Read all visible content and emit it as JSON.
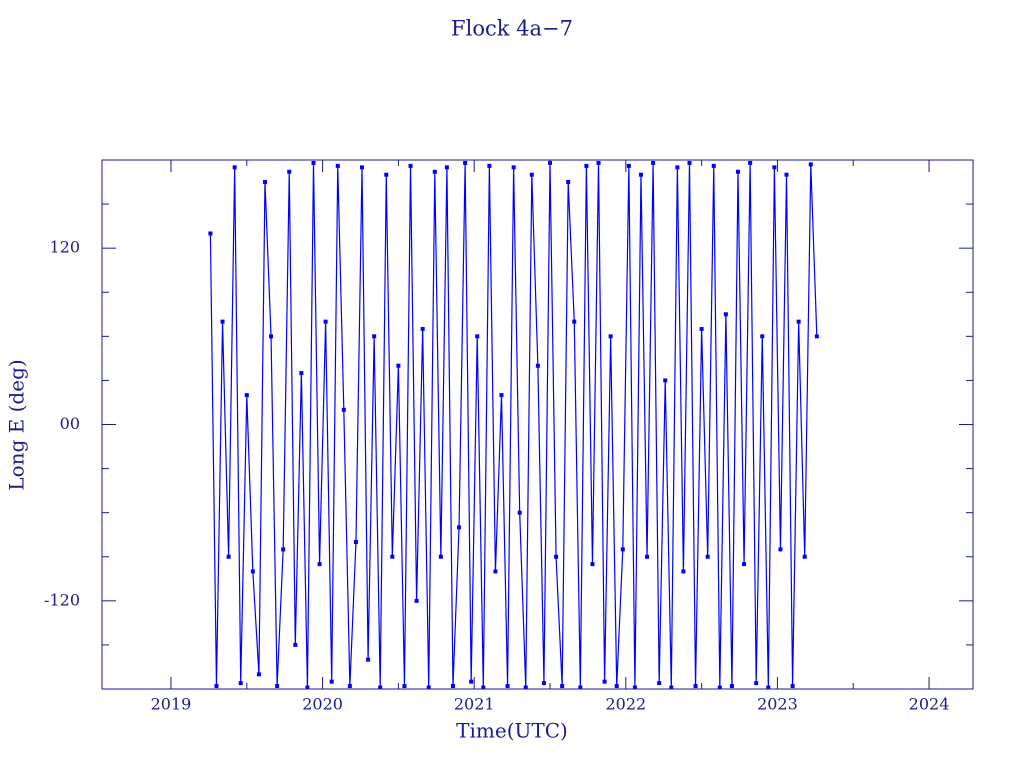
{
  "chart_data": {
    "type": "line",
    "title": "Flock 4a−7",
    "x_label": "Time(UTC)",
    "y_label": "Long E (deg)",
    "xlim": [
      2018.545,
      2024.29
    ],
    "xticks": [
      2019,
      2020,
      2021,
      2022,
      2023,
      2024
    ],
    "xminorticks": [
      2018.5,
      2019.5,
      2020.5,
      2021.5,
      2022.5,
      2023.5
    ],
    "ylim": [
      -180,
      180
    ],
    "yticks": [
      -120,
      {
        "value": 0,
        "label": "00"
      },
      120
    ],
    "yminorticks": [
      -150,
      -90,
      -60,
      -30,
      30,
      60,
      90,
      150
    ],
    "series": [
      {
        "color": "#0000ff",
        "x": [
          2019.26,
          2019.3,
          2019.34,
          2019.38,
          2019.42,
          2019.46,
          2019.5,
          2019.54,
          2019.58,
          2019.62,
          2019.66,
          2019.7,
          2019.74,
          2019.78,
          2019.82,
          2019.86,
          2019.9,
          2019.94,
          2019.98,
          2020.02,
          2020.06,
          2020.1,
          2020.14,
          2020.18,
          2020.22,
          2020.26,
          2020.3,
          2020.34,
          2020.38,
          2020.42,
          2020.46,
          2020.5,
          2020.54,
          2020.58,
          2020.62,
          2020.66,
          2020.7,
          2020.74,
          2020.78,
          2020.82,
          2020.86,
          2020.9,
          2020.94,
          2020.98,
          2021.02,
          2021.06,
          2021.1,
          2021.14,
          2021.18,
          2021.22,
          2021.26,
          2021.3,
          2021.34,
          2021.38,
          2021.42,
          2021.46,
          2021.5,
          2021.54,
          2021.58,
          2021.62,
          2021.66,
          2021.7,
          2021.74,
          2021.78,
          2021.82,
          2021.86,
          2021.9,
          2021.94,
          2021.98,
          2022.02,
          2022.06,
          2022.1,
          2022.14,
          2022.18,
          2022.22,
          2022.26,
          2022.3,
          2022.34,
          2022.38,
          2022.42,
          2022.46,
          2022.5,
          2022.54,
          2022.58,
          2022.62,
          2022.66,
          2022.7,
          2022.74,
          2022.78,
          2022.82,
          2022.86,
          2022.9,
          2022.94,
          2022.98,
          2023.02,
          2023.06,
          2023.1,
          2023.14,
          2023.18,
          2023.22,
          2023.26
        ],
        "values": [
          130,
          -178,
          70,
          -90,
          175,
          -176,
          20,
          -100,
          -170,
          165,
          60,
          -178,
          -85,
          172,
          -150,
          35,
          -179,
          178,
          -95,
          70,
          -175,
          176,
          10,
          -178,
          -80,
          175,
          -160,
          60,
          -179,
          170,
          -90,
          40,
          -178,
          176,
          -120,
          65,
          -179,
          172,
          -90,
          175,
          -178,
          -70,
          178,
          -175,
          60,
          -179,
          176,
          -100,
          20,
          -178,
          175,
          -60,
          -179,
          170,
          40,
          -176,
          178,
          -90,
          -178,
          165,
          70,
          -179,
          176,
          -95,
          178,
          -175,
          60,
          -178,
          -85,
          176,
          -179,
          170,
          -90,
          178,
          -176,
          30,
          -179,
          175,
          -100,
          178,
          -178,
          65,
          -90,
          176,
          -179,
          75,
          -178,
          172,
          -95,
          178,
          -176,
          60,
          -179,
          175,
          -85,
          170,
          -178,
          70,
          -90,
          177,
          60
        ]
      }
    ]
  }
}
